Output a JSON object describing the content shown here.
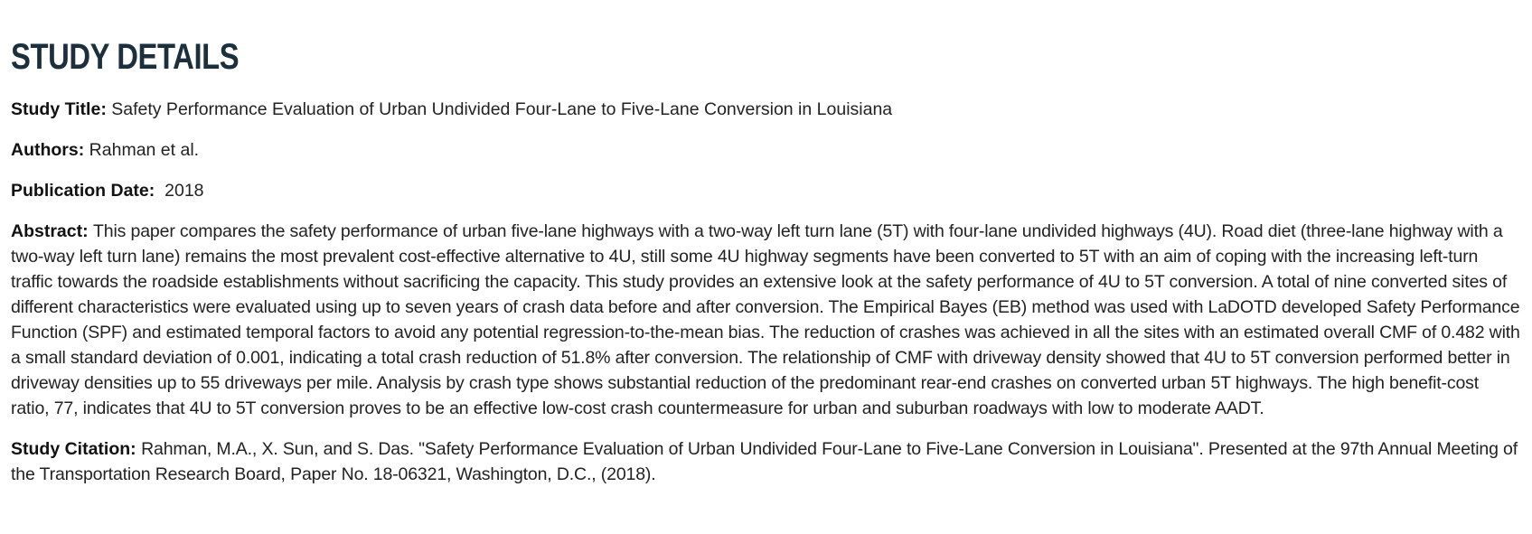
{
  "section": {
    "heading": "STUDY DETAILS"
  },
  "study": {
    "title_label": "Study Title:",
    "title": "Safety Performance Evaluation of Urban Undivided Four-Lane to Five-Lane Conversion in Louisiana",
    "authors_label": "Authors:",
    "authors": "Rahman et al.",
    "date_label": "Publication Date:",
    "date": "2018",
    "abstract_label": "Abstract:",
    "abstract": "This paper compares the safety performance of urban five-lane highways with a two-way left turn lane (5T) with four-lane undivided highways (4U). Road diet (three-lane highway with a two-way left turn lane) remains the most prevalent cost-effective alternative to 4U, still some 4U highway segments have been converted to 5T with an aim of coping with the increasing left-turn traffic towards the roadside establishments without sacrificing the capacity. This study provides an extensive look at the safety performance of 4U to 5T conversion. A total of nine converted sites of different characteristics were evaluated using up to seven years of crash data before and after conversion. The Empirical Bayes (EB) method was used with LaDOTD developed Safety Performance Function (SPF) and estimated temporal factors to avoid any potential regression-to-the-mean bias. The reduction of crashes was achieved in all the sites with an estimated overall CMF of 0.482 with a small standard deviation of 0.001, indicating a total crash reduction of 51.8% after conversion. The relationship of CMF with driveway density showed that 4U to 5T conversion performed better in driveway densities up to 55 driveways per mile. Analysis by crash type shows substantial reduction of the predominant rear-end crashes on converted urban 5T highways. The high benefit-cost ratio, 77, indicates that 4U to 5T conversion proves to be an effective low-cost crash countermeasure for urban and suburban roadways with low to moderate AADT.",
    "citation_label": "Study Citation:",
    "citation": "Rahman, M.A., X. Sun, and S. Das. \"Safety Performance Evaluation of Urban Undivided Four-Lane to Five-Lane Conversion in Louisiana\". Presented at the 97th Annual Meeting of the Transportation Research Board, Paper No. 18-06321, Washington, D.C., (2018)."
  }
}
